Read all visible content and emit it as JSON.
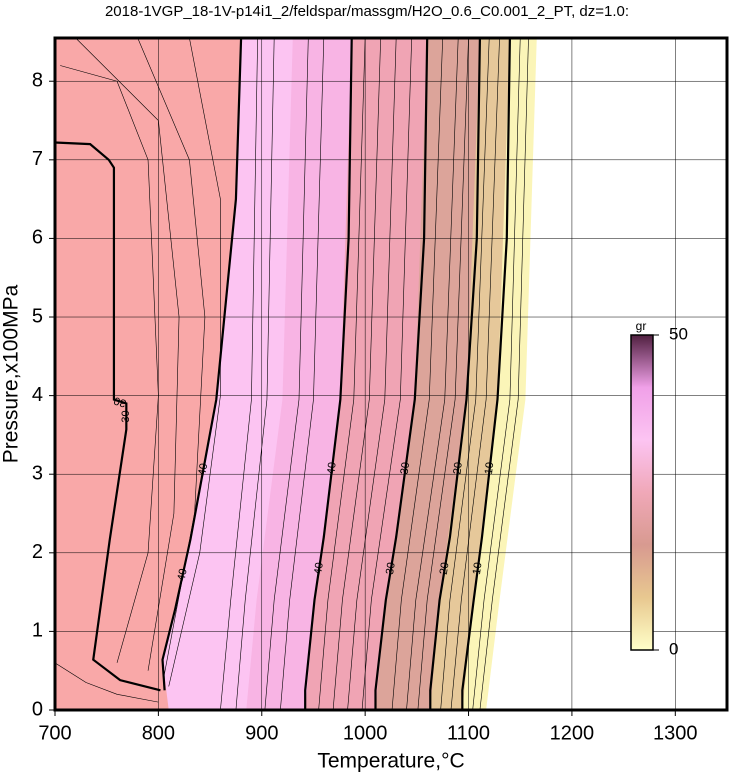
{
  "chart_data": {
    "type": "contour",
    "title": "2018-1VGP_18-1V-p14i1_2/feldspar/massgm/H2O_0.6_C0.001_2_PT, dz=1.0:",
    "xlabel": "Temperature,°C",
    "ylabel": "Pressure,x100MPa",
    "xlim": [
      700,
      1350
    ],
    "ylim": [
      0,
      8.55
    ],
    "xticks": [
      700,
      800,
      900,
      1000,
      1100,
      1200,
      1300
    ],
    "yticks": [
      0,
      1,
      2,
      3,
      4,
      5,
      6,
      7,
      8
    ],
    "grid": true,
    "fill_bands": [
      {
        "color": "#fbf5b8",
        "x": [
          1166,
          1155,
          1130,
          1117
        ],
        "y": [
          8.55,
          3.95,
          1.4,
          0
        ]
      },
      {
        "color": "#e6c89a",
        "x": [
          1140,
          1128,
          1105,
          1094
        ],
        "y": [
          8.55,
          3.95,
          1.4,
          0
        ]
      },
      {
        "color": "#dca49a",
        "x": [
          1111,
          1098,
          1072,
          1063
        ],
        "y": [
          8.55,
          3.95,
          1.4,
          0
        ]
      },
      {
        "color": "#f0a4b4",
        "x": [
          1060,
          1048,
          1020,
          1010
        ],
        "y": [
          8.55,
          3.95,
          1.4,
          0
        ]
      },
      {
        "color": "#f8b4e4",
        "x": [
          987,
          976,
          951,
          942
        ],
        "y": [
          8.55,
          3.95,
          1.4,
          0
        ]
      },
      {
        "color": "#fcc4f2",
        "x": [
          930,
          920,
          895,
          885
        ],
        "y": [
          8.55,
          3.95,
          1.4,
          0
        ]
      },
      {
        "color": "#f9a8a8",
        "x": [
          880,
          875,
          856,
          831,
          816,
          804,
          810
        ],
        "y": [
          8.55,
          6.5,
          3.95,
          2.17,
          1.27,
          0.64,
          0
        ]
      }
    ],
    "contours": [
      {
        "level": 30,
        "x": [
          700,
          734,
          752,
          757,
          757,
          769,
          769,
          753,
          737,
          763,
          802
        ],
        "y": [
          7.22,
          7.2,
          7.0,
          6.9,
          3.95,
          3.9,
          3.57,
          2.17,
          0.64,
          0.38,
          0.25
        ]
      },
      {
        "level": 40,
        "x": [
          880,
          875,
          856,
          831,
          816,
          804,
          806
        ],
        "y": [
          8.55,
          6.5,
          3.95,
          2.17,
          1.27,
          0.64,
          0.25
        ]
      },
      {
        "level": 40,
        "x": [
          987,
          984,
          976,
          960,
          951,
          942,
          942
        ],
        "y": [
          8.55,
          6.0,
          3.95,
          2.2,
          1.4,
          0.25,
          0
        ]
      },
      {
        "level": 30,
        "x": [
          1060,
          1057,
          1048,
          1030,
          1020,
          1010,
          1010
        ],
        "y": [
          8.55,
          6.0,
          3.95,
          2.2,
          1.4,
          0.25,
          0
        ]
      },
      {
        "level": 20,
        "x": [
          1111,
          1108,
          1098,
          1082,
          1072,
          1063,
          1063
        ],
        "y": [
          8.55,
          6.0,
          3.95,
          2.2,
          1.4,
          0.25,
          0
        ]
      },
      {
        "level": 10,
        "x": [
          1140,
          1137,
          1128,
          1113,
          1105,
          1094,
          1094
        ],
        "y": [
          8.55,
          6.0,
          3.95,
          2.2,
          1.4,
          0.25,
          0
        ]
      }
    ],
    "thin_contours": [
      {
        "x": [
          705,
          760,
          790,
          800,
          790,
          760
        ],
        "y": [
          8.2,
          8.0,
          7.0,
          4.0,
          2.0,
          0.6
        ]
      },
      {
        "x": [
          720,
          800,
          820,
          815,
          790
        ],
        "y": [
          8.55,
          7.5,
          5.0,
          2.5,
          0.5
        ]
      },
      {
        "x": [
          780,
          830,
          845,
          835,
          805
        ],
        "y": [
          8.55,
          7.0,
          5.0,
          2.5,
          0.4
        ]
      },
      {
        "x": [
          830,
          860,
          860,
          840,
          810
        ],
        "y": [
          8.55,
          6.5,
          4.0,
          2.0,
          0.3
        ]
      },
      {
        "x": [
          700,
          730,
          760,
          800
        ],
        "y": [
          0.6,
          0.35,
          0.2,
          0.1
        ]
      },
      {
        "x": [
          896,
          890,
          870,
          860
        ],
        "y": [
          8.55,
          3.95,
          1.4,
          0
        ]
      },
      {
        "x": [
          912,
          905,
          884,
          875
        ],
        "y": [
          8.55,
          3.95,
          1.4,
          0
        ]
      },
      {
        "x": [
          945,
          936,
          912,
          903
        ],
        "y": [
          8.55,
          3.95,
          1.4,
          0
        ]
      },
      {
        "x": [
          960,
          950,
          927,
          918
        ],
        "y": [
          8.55,
          3.95,
          1.4,
          0
        ]
      },
      {
        "x": [
          1000,
          989,
          964,
          955
        ],
        "y": [
          8.55,
          3.95,
          1.4,
          0
        ]
      },
      {
        "x": [
          1015,
          1004,
          978,
          969
        ],
        "y": [
          8.55,
          3.95,
          1.4,
          0
        ]
      },
      {
        "x": [
          1030,
          1019,
          992,
          983
        ],
        "y": [
          8.55,
          3.95,
          1.4,
          0
        ]
      },
      {
        "x": [
          1045,
          1034,
          1006,
          997
        ],
        "y": [
          8.55,
          3.95,
          1.4,
          0
        ]
      },
      {
        "x": [
          1075,
          1062,
          1035,
          1026
        ],
        "y": [
          8.55,
          3.95,
          1.4,
          0
        ]
      },
      {
        "x": [
          1090,
          1077,
          1049,
          1040
        ],
        "y": [
          8.55,
          3.95,
          1.4,
          0
        ]
      },
      {
        "x": [
          1100,
          1087,
          1060,
          1051
        ],
        "y": [
          8.55,
          3.95,
          1.4,
          0
        ]
      },
      {
        "x": [
          1120,
          1107,
          1082,
          1073
        ],
        "y": [
          8.55,
          3.95,
          1.4,
          0
        ]
      },
      {
        "x": [
          1130,
          1117,
          1093,
          1083
        ],
        "y": [
          8.55,
          3.95,
          1.4,
          0
        ]
      },
      {
        "x": [
          1150,
          1140,
          1115,
          1104
        ],
        "y": [
          8.55,
          3.95,
          1.4,
          0
        ]
      },
      {
        "x": [
          1158,
          1148,
          1123,
          1111
        ],
        "y": [
          8.55,
          3.95,
          1.4,
          0
        ]
      }
    ],
    "colorbar": {
      "label": "gr",
      "ticks": [
        0,
        50
      ],
      "range": [
        0,
        50
      ],
      "colors": [
        "#ffffc8",
        "#e8c890",
        "#d89a90",
        "#f0a8b8",
        "#fcc4f2",
        "#f0a0e8",
        "#502040"
      ]
    }
  }
}
